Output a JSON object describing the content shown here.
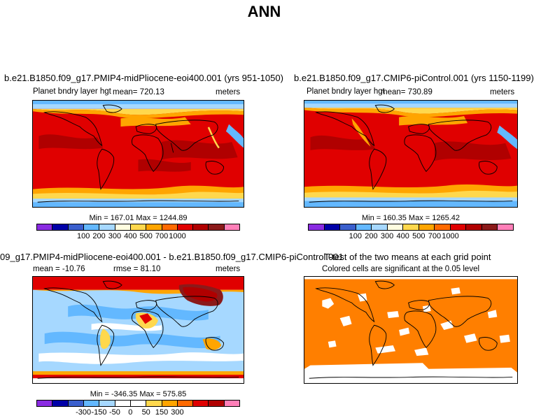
{
  "title": "ANN",
  "palettes": {
    "field": [
      "#8a2be2",
      "#0000a8",
      "#3a5fcd",
      "#63b8ff",
      "#a6d8ff",
      "#fffde0",
      "#ffd84d",
      "#ffa500",
      "#ff6a00",
      "#e00000",
      "#b00000",
      "#8b1a1a",
      "#ff7fb8"
    ],
    "diff": [
      "#8a2be2",
      "#0000a8",
      "#3a5fcd",
      "#63b8ff",
      "#a6d8ff",
      "#ffffff",
      "#ffffff",
      "#ffd84d",
      "#ffa500",
      "#ff6a00",
      "#e00000",
      "#b00000",
      "#ff7fb8"
    ],
    "land": "#e00000",
    "ttest": "#ff7f00"
  },
  "panels": {
    "top_left": {
      "title": "b.e21.B1850.f09_g17.PMIP4-midPliocene-eoi400.001 (yrs 951-1050)",
      "field": "Planet bndry layer hgt",
      "mean": "mean= 720.13",
      "units": "meters",
      "minmax": "Min = 167.01 Max = 1244.89"
    },
    "top_right": {
      "title": "b.e21.B1850.f09_g17.CMIP6-piControl.001 (yrs 1150-1199)",
      "field": "Planet bndry layer hgt",
      "mean": "mean= 730.89",
      "units": "meters",
      "minmax": "Min = 160.35 Max = 1265.42"
    },
    "bottom_left": {
      "title": "09_g17.PMIP4-midPliocene-eoi400.001 - b.e21.B1850.f09_g17.CMIP6-piControl.001",
      "mean": "mean = -10.76",
      "rmse": "rmse = 81.10",
      "units": "meters",
      "minmax": "Min = -346.35 Max = 575.85"
    },
    "bottom_right": {
      "title": "T-test of the two means at each grid point",
      "subtitle": "Colored cells are significant at the 0.05 level"
    }
  },
  "colorbars": {
    "top_left_ticks": [
      "100",
      "200",
      "300",
      "400",
      "500",
      "700",
      "1000"
    ],
    "top_right_ticks": [
      "100",
      "200",
      "300",
      "400",
      "500",
      "700",
      "1000"
    ],
    "diff_ticks": [
      "-300",
      "-150",
      "-50",
      "0",
      "50",
      "150",
      "300"
    ]
  }
}
